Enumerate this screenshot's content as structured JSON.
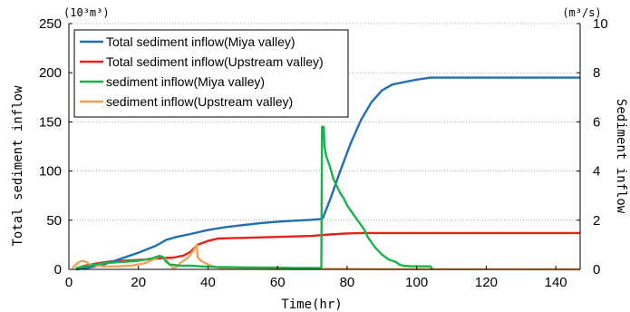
{
  "chart_data": {
    "type": "line",
    "x_unit_label": "Time(hr)",
    "left_axis": {
      "label": "Total sediment inflow",
      "unit": "(10³m³)",
      "ylim": [
        0,
        250
      ],
      "ticks": [
        0,
        50,
        100,
        150,
        200,
        250
      ]
    },
    "right_axis": {
      "label": "Sediment inflow",
      "unit": "(m³/s)",
      "ylim": [
        0,
        10
      ],
      "ticks": [
        0,
        2,
        4,
        6,
        8,
        10
      ]
    },
    "xlim": [
      0,
      147
    ],
    "xticks": [
      0,
      20,
      40,
      60,
      80,
      100,
      120,
      140
    ],
    "grid": "horizontal dotted",
    "legend_position": "top-left",
    "series": [
      {
        "name": "Total sediment inflow(Miya valley)",
        "color": "#1f6eb4",
        "axis": "left",
        "points": [
          [
            2,
            0
          ],
          [
            6,
            2
          ],
          [
            10,
            5
          ],
          [
            15,
            11
          ],
          [
            20,
            17
          ],
          [
            25,
            24
          ],
          [
            28,
            30
          ],
          [
            31,
            33
          ],
          [
            35,
            36
          ],
          [
            40,
            40
          ],
          [
            45,
            43
          ],
          [
            50,
            45
          ],
          [
            55,
            47
          ],
          [
            60,
            48.5
          ],
          [
            65,
            49.5
          ],
          [
            70,
            50.5
          ],
          [
            72,
            51
          ],
          [
            73,
            52
          ],
          [
            75,
            70
          ],
          [
            78,
            100
          ],
          [
            81,
            128
          ],
          [
            84,
            152
          ],
          [
            87,
            170
          ],
          [
            90,
            182
          ],
          [
            93,
            188
          ],
          [
            97,
            191
          ],
          [
            100,
            193
          ],
          [
            104,
            195
          ],
          [
            147,
            195
          ]
        ]
      },
      {
        "name": "Total sediment inflow(Upstream valley)",
        "color": "#e8201a",
        "axis": "left",
        "points": [
          [
            2,
            1
          ],
          [
            5,
            4
          ],
          [
            8,
            6
          ],
          [
            12,
            8
          ],
          [
            17,
            9
          ],
          [
            22,
            10
          ],
          [
            27,
            11.5
          ],
          [
            30,
            12
          ],
          [
            33,
            14
          ],
          [
            35,
            18
          ],
          [
            37,
            25
          ],
          [
            40,
            29
          ],
          [
            43,
            31.5
          ],
          [
            50,
            32
          ],
          [
            60,
            33
          ],
          [
            70,
            34
          ],
          [
            75,
            35.5
          ],
          [
            80,
            36.5
          ],
          [
            84,
            37
          ],
          [
            147,
            37
          ]
        ]
      },
      {
        "name": "sediment inflow(Miya valley)",
        "color": "#19b24b",
        "axis": "right",
        "points": [
          [
            2,
            0.05
          ],
          [
            6,
            0.15
          ],
          [
            10,
            0.25
          ],
          [
            15,
            0.3
          ],
          [
            20,
            0.35
          ],
          [
            24,
            0.45
          ],
          [
            26,
            0.55
          ],
          [
            27,
            0.5
          ],
          [
            28,
            0.3
          ],
          [
            29,
            0.2
          ],
          [
            32,
            0.15
          ],
          [
            35,
            0.15
          ],
          [
            38,
            0.12
          ],
          [
            42,
            0.1
          ],
          [
            50,
            0.08
          ],
          [
            60,
            0.07
          ],
          [
            65,
            0.06
          ],
          [
            72,
            0.06
          ],
          [
            72.6,
            0.07
          ],
          [
            72.8,
            5.8
          ],
          [
            73.3,
            5.8
          ],
          [
            73.5,
            5.0
          ],
          [
            74,
            4.6
          ],
          [
            75,
            4.2
          ],
          [
            76,
            3.7
          ],
          [
            77,
            3.4
          ],
          [
            78,
            3.1
          ],
          [
            79,
            2.9
          ],
          [
            80,
            2.6
          ],
          [
            81,
            2.4
          ],
          [
            82,
            2.2
          ],
          [
            83,
            2.0
          ],
          [
            84,
            1.8
          ],
          [
            85,
            1.6
          ],
          [
            86,
            1.3
          ],
          [
            87,
            1.1
          ],
          [
            88,
            0.9
          ],
          [
            89,
            0.75
          ],
          [
            90,
            0.6
          ],
          [
            91,
            0.5
          ],
          [
            92,
            0.4
          ],
          [
            93,
            0.35
          ],
          [
            94,
            0.3
          ],
          [
            95,
            0.2
          ],
          [
            96,
            0.15
          ],
          [
            97,
            0.14
          ],
          [
            98,
            0.13
          ],
          [
            104,
            0.12
          ],
          [
            104.5,
            0.0
          ]
        ]
      },
      {
        "name": "sediment inflow(Upstream valley)",
        "color": "#f2a257",
        "axis": "right",
        "points": [
          [
            1,
            0.05
          ],
          [
            2,
            0.2
          ],
          [
            3,
            0.3
          ],
          [
            4,
            0.35
          ],
          [
            5,
            0.3
          ],
          [
            6,
            0.2
          ],
          [
            8,
            0.15
          ],
          [
            10,
            0.12
          ],
          [
            14,
            0.12
          ],
          [
            18,
            0.15
          ],
          [
            22,
            0.25
          ],
          [
            25,
            0.45
          ],
          [
            26,
            0.55
          ],
          [
            27,
            0.5
          ],
          [
            28,
            0.4
          ],
          [
            29,
            0.2
          ],
          [
            30,
            0.05
          ],
          [
            31,
            0.1
          ],
          [
            32,
            0.25
          ],
          [
            33,
            0.35
          ],
          [
            34,
            0.45
          ],
          [
            35,
            0.6
          ],
          [
            36,
            0.8
          ],
          [
            36.8,
            1.0
          ],
          [
            37,
            0.5
          ],
          [
            38,
            0.35
          ],
          [
            40,
            0.2
          ],
          [
            42,
            0.1
          ],
          [
            44,
            0.05
          ],
          [
            50,
            0.03
          ],
          [
            60,
            0.02
          ],
          [
            70,
            0.02
          ],
          [
            80,
            0.02
          ],
          [
            85,
            0.01
          ],
          [
            147,
            0.0
          ]
        ]
      }
    ]
  }
}
